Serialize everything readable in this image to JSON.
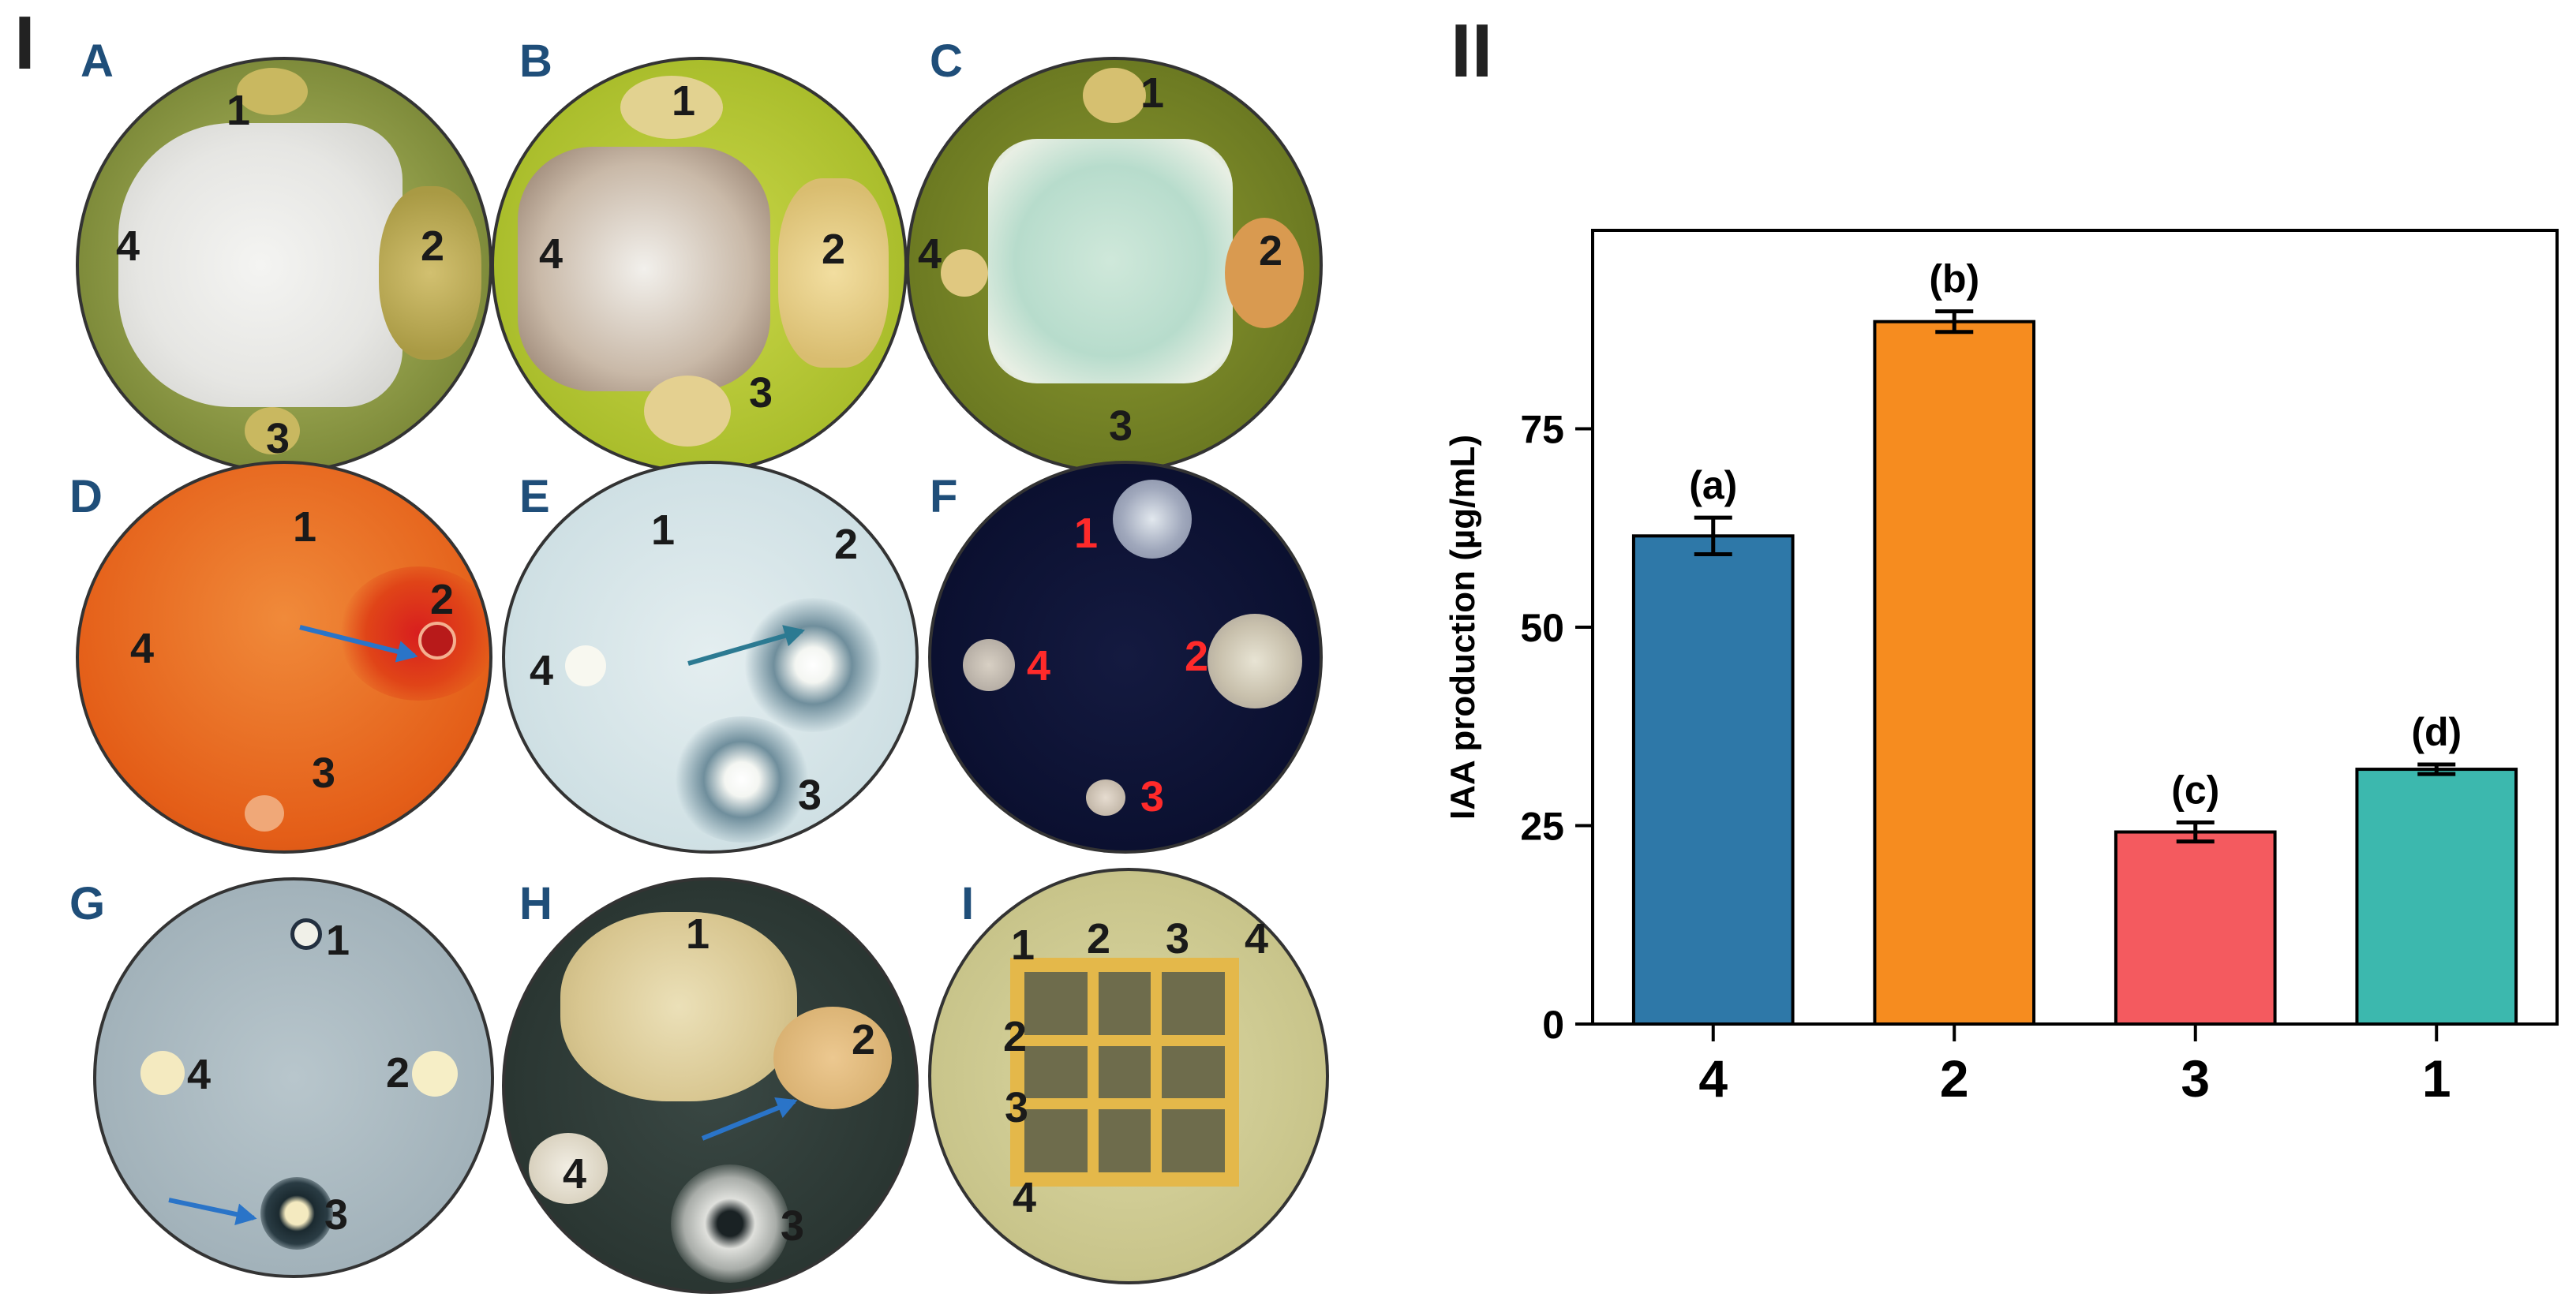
{
  "figure": {
    "panel_I_label": "I",
    "panel_II_label": "II"
  },
  "plates": [
    {
      "letter": "A",
      "labels": [
        "1",
        "2",
        "3",
        "4"
      ],
      "bg": "#8a9a3a"
    },
    {
      "letter": "B",
      "labels": [
        "1",
        "2",
        "3",
        "4"
      ],
      "bg": "#b8c832"
    },
    {
      "letter": "C",
      "labels": [
        "1",
        "2",
        "3",
        "4"
      ],
      "bg": "#6d7a22"
    },
    {
      "letter": "D",
      "labels": [
        "1",
        "2",
        "3",
        "4"
      ],
      "bg": "#e3601a"
    },
    {
      "letter": "E",
      "labels": [
        "1",
        "2",
        "3",
        "4"
      ],
      "bg": "#c9dde0"
    },
    {
      "letter": "F",
      "labels": [
        "1",
        "2",
        "3",
        "4"
      ],
      "bg": "#0c1230"
    },
    {
      "letter": "G",
      "labels": [
        "1",
        "2",
        "3",
        "4"
      ],
      "bg": "#9fb0b8"
    },
    {
      "letter": "H",
      "labels": [
        "1",
        "2",
        "3",
        "4"
      ],
      "bg": "#2e3a36"
    },
    {
      "letter": "I",
      "labels": [
        "1",
        "2",
        "3",
        "4"
      ],
      "bg": "#c8c48a"
    }
  ],
  "grid_labels": {
    "top": [
      "1",
      "2",
      "3",
      "4"
    ],
    "left": [
      "2",
      "3",
      "4"
    ]
  },
  "chart_data": {
    "type": "bar",
    "categories": [
      "4",
      "2",
      "3",
      "1"
    ],
    "values": [
      61.5,
      88.5,
      24.2,
      32.1
    ],
    "errors": [
      2.3,
      1.3,
      1.2,
      0.6
    ],
    "significance_labels": [
      "(a)",
      "(b)",
      "(c)",
      "(d)"
    ],
    "colors": [
      "#2e78a8",
      "#f68c1f",
      "#f45a5f",
      "#3cb8ae"
    ],
    "ylabel": "IAA production (µg/mL)",
    "ylim": [
      0,
      100
    ],
    "yticks": [
      0,
      25,
      50,
      75
    ],
    "xlabel": "",
    "title": "",
    "grid": false
  }
}
